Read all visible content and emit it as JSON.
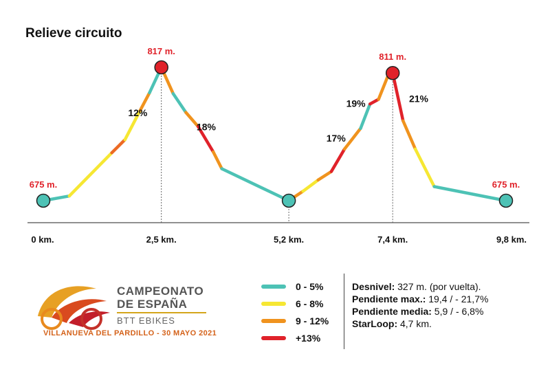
{
  "page": {
    "title": "Relieve circuito"
  },
  "colors": {
    "teal": "#4dc2b5",
    "yellow": "#f6e733",
    "orange": "#f0931e",
    "red": "#e0222a",
    "deep_orange": "#ec6a24",
    "peak_marker": "#e0222a"
  },
  "chart_data": {
    "type": "line",
    "title": "Relieve circuito",
    "xlabel": "",
    "ylabel": "",
    "x_ticks": [
      {
        "km": 0,
        "label": "0 km."
      },
      {
        "km": 2.5,
        "label": "2,5 km."
      },
      {
        "km": 5.2,
        "label": "5,2 km."
      },
      {
        "km": 7.4,
        "label": "7,4 km."
      },
      {
        "km": 9.8,
        "label": "9,8 km."
      }
    ],
    "xlim": [
      0,
      9.8
    ],
    "ylim": [
      630,
      830
    ],
    "grid": false,
    "key_points": [
      {
        "km": 0,
        "elevation": 675,
        "label": "675 m.",
        "marker": "teal"
      },
      {
        "km": 2.5,
        "elevation": 817,
        "label": "817 m.",
        "marker": "red"
      },
      {
        "km": 5.2,
        "elevation": 675,
        "label": "",
        "marker": "teal"
      },
      {
        "km": 7.4,
        "elevation": 811,
        "label": "811 m.",
        "marker": "red"
      },
      {
        "km": 9.8,
        "elevation": 675,
        "label": "675 m.",
        "marker": "teal"
      }
    ],
    "segments": [
      {
        "color": "teal",
        "points": [
          [
            0,
            675
          ],
          [
            0.55,
            680
          ]
        ]
      },
      {
        "color": "yellow",
        "points": [
          [
            0.55,
            680
          ],
          [
            1.45,
            726
          ]
        ]
      },
      {
        "color": "deep_orange",
        "points": [
          [
            1.45,
            726
          ],
          [
            1.73,
            740
          ]
        ]
      },
      {
        "color": "yellow",
        "points": [
          [
            1.73,
            740
          ],
          [
            2.05,
            771
          ]
        ]
      },
      {
        "color": "orange",
        "points": [
          [
            2.05,
            771
          ],
          [
            2.25,
            790
          ]
        ]
      },
      {
        "color": "teal",
        "points": [
          [
            2.25,
            790
          ],
          [
            2.5,
            817
          ]
        ]
      },
      {
        "color": "orange",
        "points": [
          [
            2.5,
            817
          ],
          [
            2.75,
            789
          ]
        ]
      },
      {
        "color": "teal",
        "points": [
          [
            2.75,
            789
          ],
          [
            3.02,
            769
          ]
        ]
      },
      {
        "color": "orange",
        "points": [
          [
            3.02,
            769
          ],
          [
            3.28,
            754
          ]
        ]
      },
      {
        "color": "red",
        "points": [
          [
            3.28,
            754
          ],
          [
            3.6,
            727
          ]
        ]
      },
      {
        "color": "orange",
        "points": [
          [
            3.6,
            727
          ],
          [
            3.78,
            709
          ]
        ]
      },
      {
        "color": "teal",
        "points": [
          [
            3.78,
            709
          ],
          [
            5.2,
            675
          ]
        ]
      },
      {
        "color": "orange",
        "points": [
          [
            5.2,
            675
          ],
          [
            5.5,
            685
          ]
        ]
      },
      {
        "color": "yellow",
        "points": [
          [
            5.5,
            685
          ],
          [
            5.82,
            697
          ]
        ]
      },
      {
        "color": "orange",
        "points": [
          [
            5.82,
            697
          ],
          [
            6.1,
            706
          ]
        ]
      },
      {
        "color": "red",
        "points": [
          [
            6.1,
            706
          ],
          [
            6.38,
            730
          ]
        ]
      },
      {
        "color": "orange",
        "points": [
          [
            6.38,
            730
          ],
          [
            6.72,
            752
          ]
        ]
      },
      {
        "color": "teal",
        "points": [
          [
            6.72,
            752
          ],
          [
            6.92,
            778
          ]
        ]
      },
      {
        "color": "red",
        "points": [
          [
            6.92,
            778
          ],
          [
            7.1,
            783
          ]
        ]
      },
      {
        "color": "orange",
        "points": [
          [
            7.1,
            783
          ],
          [
            7.3,
            808
          ]
        ]
      },
      {
        "color": "teal",
        "points": [
          [
            7.3,
            808
          ],
          [
            7.4,
            811
          ]
        ]
      },
      {
        "color": "red",
        "points": [
          [
            7.4,
            811
          ],
          [
            7.62,
            760
          ]
        ]
      },
      {
        "color": "orange",
        "points": [
          [
            7.62,
            760
          ],
          [
            7.88,
            730
          ]
        ]
      },
      {
        "color": "yellow",
        "points": [
          [
            7.88,
            730
          ],
          [
            8.28,
            690
          ]
        ]
      },
      {
        "color": "teal",
        "points": [
          [
            8.28,
            690
          ],
          [
            9.8,
            675
          ]
        ]
      }
    ],
    "annotations": [
      {
        "km": 2.0,
        "elevation": 765,
        "text": "12%"
      },
      {
        "km": 3.45,
        "elevation": 750,
        "text": "18%"
      },
      {
        "km": 6.2,
        "elevation": 738,
        "text": "17%"
      },
      {
        "km": 6.62,
        "elevation": 775,
        "text": "19%"
      },
      {
        "km": 7.95,
        "elevation": 780,
        "text": "21%"
      }
    ]
  },
  "legend": {
    "items": [
      {
        "color": "teal",
        "label": "0 - 5%"
      },
      {
        "color": "yellow",
        "label": "6 - 8%"
      },
      {
        "color": "orange",
        "label": "9 - 12%"
      },
      {
        "color": "red",
        "label": "+13%"
      }
    ]
  },
  "stats": {
    "desnivel_label": "Desnivel:",
    "desnivel_value": " 327 m. (por vuelta).",
    "pmax_label": "Pendiente max.:",
    "pmax_value": " 19,4 / - 21,7%",
    "pmedia_label": "Pendiente media:",
    "pmedia_value": " 5,9 / - 6,8%",
    "starloop_label": "StarLoop:",
    "starloop_value": " 4,7 km."
  },
  "logo": {
    "line1": "CAMPEONATO",
    "line2": "DE ESPAÑA",
    "line3": "BTT EBIKES",
    "line4": "VILLANUEVA DEL PARDILLO - 30 MAYO 2021"
  }
}
